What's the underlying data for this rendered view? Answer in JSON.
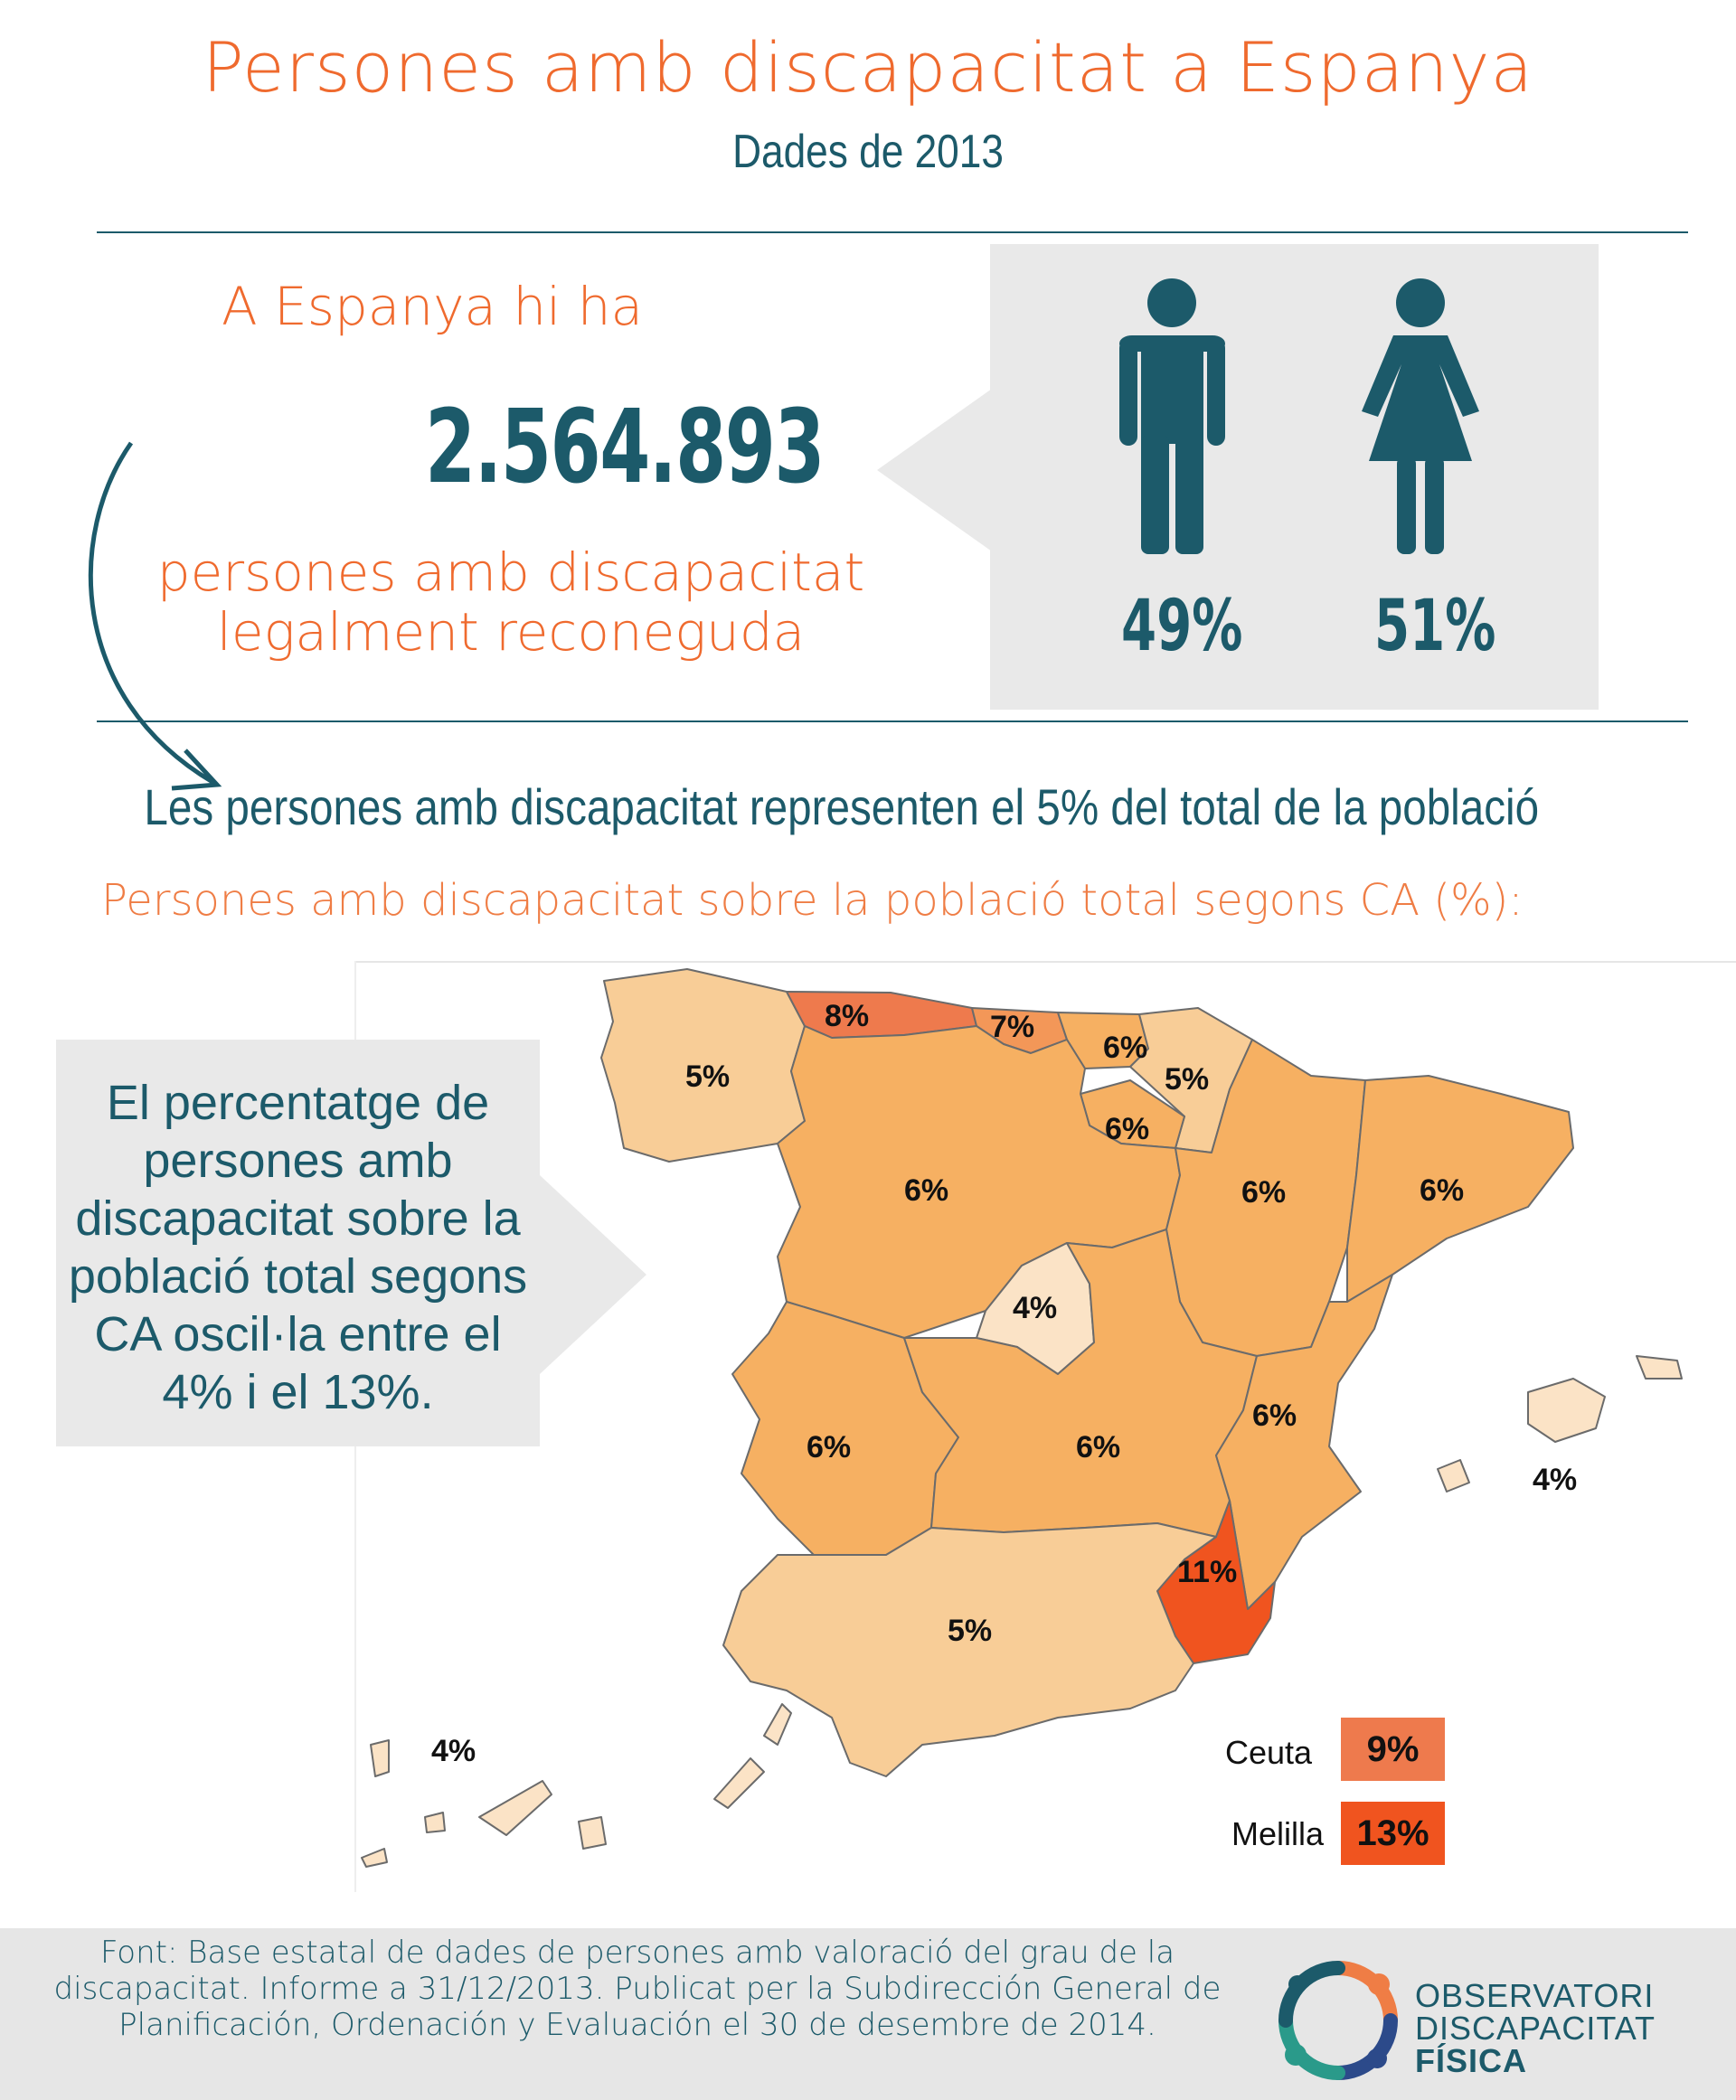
{
  "header": {
    "title": "Persones amb discapacitat a Espanya",
    "subtitle": "Dades de 2013"
  },
  "summary": {
    "intro": "A Espanya hi ha",
    "total": "2.564.893",
    "description_line1": "persones amb discapacitat",
    "description_line2": "legalment reconeguda"
  },
  "gender": {
    "male_percent": "49%",
    "female_percent": "51%",
    "male_icon": "man-icon",
    "female_icon": "woman-icon"
  },
  "statement": "Les persones amb discapacitat representen el 5% del total de la població",
  "map": {
    "title": "Persones amb discapacitat sobre la població total segons CA (%):",
    "callout": "El percentatge de persones amb discapacitat sobre la població total segons CA oscil·la entre el 4% i el 13%.",
    "regions": [
      {
        "id": "galicia",
        "label": "5%"
      },
      {
        "id": "asturias",
        "label": "8%"
      },
      {
        "id": "cantabria",
        "label": "7%"
      },
      {
        "id": "pais-vasco",
        "label": "6%"
      },
      {
        "id": "navarra",
        "label": "5%"
      },
      {
        "id": "la-rioja",
        "label": "6%"
      },
      {
        "id": "castilla-leon",
        "label": "6%"
      },
      {
        "id": "aragon",
        "label": "6%"
      },
      {
        "id": "cataluna",
        "label": "6%"
      },
      {
        "id": "madrid",
        "label": "4%"
      },
      {
        "id": "extremadura",
        "label": "6%"
      },
      {
        "id": "castilla-la-mancha",
        "label": "6%"
      },
      {
        "id": "valencia",
        "label": "6%"
      },
      {
        "id": "baleares",
        "label": "4%"
      },
      {
        "id": "murcia",
        "label": "11%"
      },
      {
        "id": "andalucia",
        "label": "5%"
      },
      {
        "id": "canarias",
        "label": "4%"
      }
    ],
    "legend": [
      {
        "name": "Ceuta",
        "value": "9%"
      },
      {
        "name": "Melilla",
        "value": "13%"
      }
    ],
    "colors": {
      "pct_4": "#fbe3c6",
      "pct_5": "#f8cd97",
      "pct_6": "#f6b062",
      "pct_7": "#f39758",
      "pct_8": "#ee7a4d",
      "pct_9": "#ee7a4d",
      "pct_11": "#f0541f",
      "pct_13": "#f0541f"
    }
  },
  "footer": {
    "source_line1": "Font: Base estatal de dades de persones amb valoració del grau de la",
    "source_line2": "discapacitat. Informe a 31/12/2013. Publicat per la Subdirección General de",
    "source_line3": "Planificación, Ordenación y Evaluación el 30 de desembre de 2014.",
    "org_line1": "OBSERVATORI",
    "org_line2": "DISCAPACITAT",
    "org_line3": "FÍSICA",
    "logo_icon": "observatori-logo-icon"
  },
  "colors": {
    "accent_orange": "#ef6a2e",
    "accent_teal": "#1c5a6a",
    "panel_grey": "#e9e9e9"
  }
}
